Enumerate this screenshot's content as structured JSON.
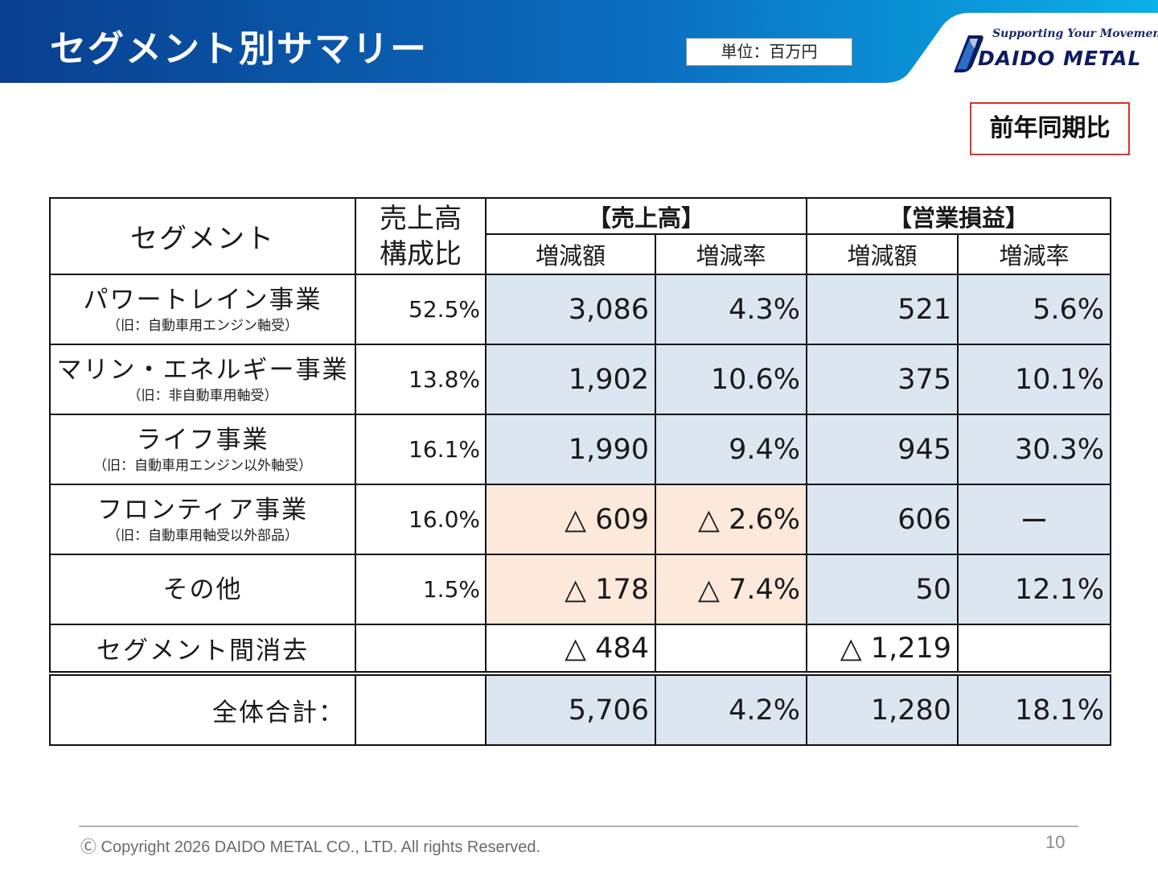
{
  "header": {
    "title": "セグメント別サマリー",
    "unit": "単位：百万円",
    "logo": {
      "tagline": "Supporting Your Movement.",
      "brand": "DAIDO METAL"
    }
  },
  "comparison_label": "前年同期比",
  "table": {
    "headers": {
      "segment": "セグメント",
      "ratio_line1": "売上高",
      "ratio_line2": "構成比",
      "sales_group": "【売上高】",
      "op_group": "【営業損益】",
      "change_amount": "増減額",
      "change_rate": "増減率"
    },
    "rows": [
      {
        "name": "パワートレイン事業",
        "old": "（旧：自動車用エンジン軸受）",
        "ratio": "52.5%",
        "sales_amount": "3,086",
        "sales_rate": "4.3%",
        "op_amount": "521",
        "op_rate": "5.6%"
      },
      {
        "name": "マリン・エネルギー事業",
        "old": "（旧：非自動車用軸受）",
        "ratio": "13.8%",
        "sales_amount": "1,902",
        "sales_rate": "10.6%",
        "op_amount": "375",
        "op_rate": "10.1%"
      },
      {
        "name": "ライフ事業",
        "old": "（旧：自動車用エンジン以外軸受）",
        "ratio": "16.1%",
        "sales_amount": "1,990",
        "sales_rate": "9.4%",
        "op_amount": "945",
        "op_rate": "30.3%"
      },
      {
        "name": "フロンティア事業",
        "old": "（旧：自動車用軸受以外部品）",
        "ratio": "16.0%",
        "sales_amount": "△ 609",
        "sales_rate": "△ 2.6%",
        "op_amount": "606",
        "op_rate": "ー"
      },
      {
        "name": "その他",
        "old": "",
        "ratio": "1.5%",
        "sales_amount": "△ 178",
        "sales_rate": "△ 7.4%",
        "op_amount": "50",
        "op_rate": "12.1%"
      }
    ],
    "elimination": {
      "name": "セグメント間消去",
      "sales_amount": "△ 484",
      "op_amount": "△ 1,219"
    },
    "total": {
      "name": "全体合計：",
      "sales_amount": "5,706",
      "sales_rate": "4.2%",
      "op_amount": "1,280",
      "op_rate": "18.1%"
    }
  },
  "footer": {
    "copyright": "Ⓒ Copyright 2026 DAIDO METAL CO., LTD. All rights Reserved.",
    "page_number": "10"
  },
  "colors": {
    "header_blue": "#0a3f8f",
    "header_light": "#0aa4e0",
    "cell_blue": "#dce6f1",
    "cell_peach": "#fde9db",
    "box_red": "#d9342b"
  }
}
